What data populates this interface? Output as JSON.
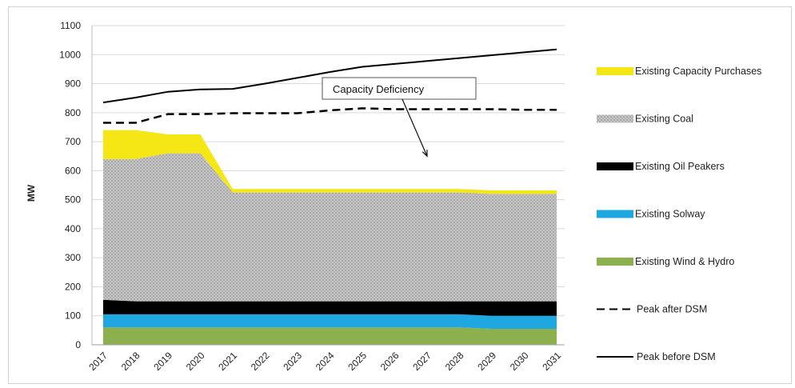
{
  "chart_data": {
    "type": "area",
    "title": "",
    "xlabel": "",
    "ylabel": "MW",
    "ylim": [
      0,
      1100
    ],
    "yticks": [
      0,
      100,
      200,
      300,
      400,
      500,
      600,
      700,
      800,
      900,
      1000,
      1100
    ],
    "x": [
      "2017",
      "2018",
      "2019",
      "2020",
      "2021",
      "2022",
      "2023",
      "2024",
      "2025",
      "2026",
      "2027",
      "2028",
      "2029",
      "2030",
      "2031"
    ],
    "grid": "horizontal",
    "legend_position": "right",
    "stacked_series": [
      {
        "name": "Existing Wind & Hydro",
        "color": "#8cb04e",
        "values": [
          60,
          60,
          60,
          60,
          60,
          60,
          60,
          60,
          60,
          60,
          60,
          60,
          55,
          55,
          55
        ]
      },
      {
        "name": "Existing Solway",
        "color": "#1ea7e1",
        "values": [
          45,
          45,
          45,
          45,
          45,
          45,
          45,
          45,
          45,
          45,
          45,
          45,
          45,
          45,
          45
        ]
      },
      {
        "name": "Existing Oil Peakers",
        "color": "#000000",
        "values": [
          50,
          45,
          45,
          45,
          45,
          45,
          45,
          45,
          45,
          45,
          45,
          45,
          50,
          50,
          50
        ]
      },
      {
        "name": "Existing Coal",
        "color": "#bdbdbd",
        "pattern": true,
        "values": [
          485,
          490,
          510,
          510,
          375,
          375,
          375,
          375,
          375,
          375,
          375,
          375,
          370,
          370,
          370
        ]
      },
      {
        "name": "Existing Capacity Purchases",
        "color": "#f5e616",
        "values": [
          100,
          100,
          65,
          65,
          12,
          12,
          12,
          12,
          12,
          12,
          12,
          12,
          12,
          12,
          12
        ]
      }
    ],
    "line_series": [
      {
        "name": "Peak after DSM",
        "style": "dashed",
        "color": "#000000",
        "values": [
          765,
          765,
          795,
          795,
          798,
          798,
          798,
          808,
          815,
          812,
          812,
          812,
          812,
          810,
          810
        ]
      },
      {
        "name": "Peak before DSM",
        "style": "solid",
        "color": "#000000",
        "values": [
          835,
          852,
          872,
          880,
          882,
          900,
          920,
          940,
          958,
          968,
          978,
          988,
          998,
          1008,
          1018
        ]
      }
    ],
    "legend_order": [
      "Existing Capacity Purchases",
      "Existing Coal",
      "Existing Oil Peakers",
      "Existing Solway",
      "Existing Wind & Hydro",
      "Peak after DSM",
      "Peak before DSM"
    ],
    "annotation": {
      "text": "Capacity Deficiency",
      "arrow_to_year": "2027",
      "arrow_to_value": 650
    }
  }
}
